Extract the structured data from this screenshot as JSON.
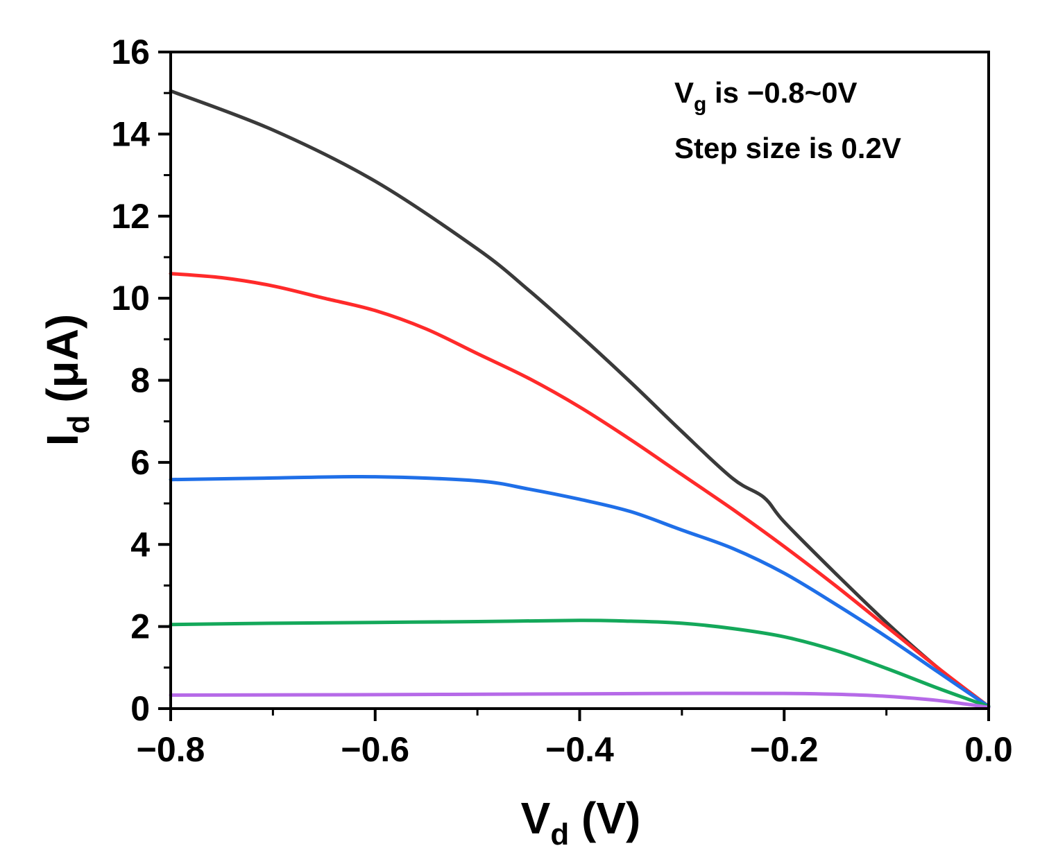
{
  "chart_data": {
    "type": "line",
    "title": "",
    "xlabel": {
      "main": "V",
      "sub": "d",
      "unit": " (V)"
    },
    "ylabel": {
      "main": "I",
      "sub": "d",
      "unit": " (μA)"
    },
    "xlim": [
      -0.8,
      0.0
    ],
    "ylim": [
      0,
      16
    ],
    "x_ticks": [
      -0.8,
      -0.6,
      -0.4,
      -0.2,
      0.0
    ],
    "x_tick_labels": [
      "−0.8",
      "−0.6",
      "−0.4",
      "−0.2",
      "0.0"
    ],
    "x_minor_step": 0.1,
    "y_ticks": [
      0,
      2,
      4,
      6,
      8,
      10,
      12,
      14,
      16
    ],
    "y_tick_labels": [
      "0",
      "2",
      "4",
      "6",
      "8",
      "10",
      "12",
      "14",
      "16"
    ],
    "y_minor_step": 1,
    "grid": false,
    "annotation": {
      "line1": {
        "main": "V",
        "sub": "g",
        "rest": " is −0.8~0V"
      },
      "line2": "Step size is 0.2V"
    },
    "series": [
      {
        "name": "black",
        "color": "#3a3a3a",
        "x": [
          -0.8,
          -0.7,
          -0.6,
          -0.5,
          -0.45,
          -0.4,
          -0.35,
          -0.3,
          -0.25,
          -0.22,
          -0.2,
          -0.15,
          -0.1,
          -0.05,
          0.0
        ],
        "y": [
          15.05,
          14.1,
          12.85,
          11.2,
          10.2,
          9.1,
          7.95,
          6.75,
          5.6,
          5.15,
          4.55,
          3.3,
          2.1,
          1.0,
          0.05
        ]
      },
      {
        "name": "red",
        "color": "#ff2a2a",
        "x": [
          -0.8,
          -0.75,
          -0.7,
          -0.65,
          -0.6,
          -0.55,
          -0.5,
          -0.45,
          -0.4,
          -0.35,
          -0.3,
          -0.25,
          -0.2,
          -0.15,
          -0.1,
          -0.05,
          0.0
        ],
        "y": [
          10.6,
          10.5,
          10.3,
          10.0,
          9.7,
          9.25,
          8.65,
          8.05,
          7.35,
          6.55,
          5.7,
          4.85,
          3.95,
          3.0,
          2.0,
          1.0,
          0.05
        ]
      },
      {
        "name": "blue",
        "color": "#1f6fe8",
        "x": [
          -0.8,
          -0.7,
          -0.6,
          -0.5,
          -0.45,
          -0.4,
          -0.35,
          -0.3,
          -0.25,
          -0.2,
          -0.15,
          -0.1,
          -0.05,
          0.0
        ],
        "y": [
          5.58,
          5.62,
          5.65,
          5.55,
          5.35,
          5.1,
          4.8,
          4.35,
          3.9,
          3.3,
          2.55,
          1.75,
          0.9,
          0.05
        ]
      },
      {
        "name": "green",
        "color": "#14a85a",
        "x": [
          -0.8,
          -0.7,
          -0.6,
          -0.5,
          -0.4,
          -0.35,
          -0.3,
          -0.25,
          -0.2,
          -0.15,
          -0.1,
          -0.05,
          0.0
        ],
        "y": [
          2.05,
          2.08,
          2.1,
          2.12,
          2.15,
          2.13,
          2.08,
          1.95,
          1.75,
          1.42,
          0.98,
          0.5,
          0.05
        ]
      },
      {
        "name": "purple",
        "color": "#b66ae8",
        "x": [
          -0.8,
          -0.6,
          -0.4,
          -0.3,
          -0.2,
          -0.15,
          -0.1,
          -0.05,
          0.0
        ],
        "y": [
          0.33,
          0.34,
          0.36,
          0.37,
          0.37,
          0.35,
          0.3,
          0.2,
          0.03
        ]
      }
    ]
  }
}
